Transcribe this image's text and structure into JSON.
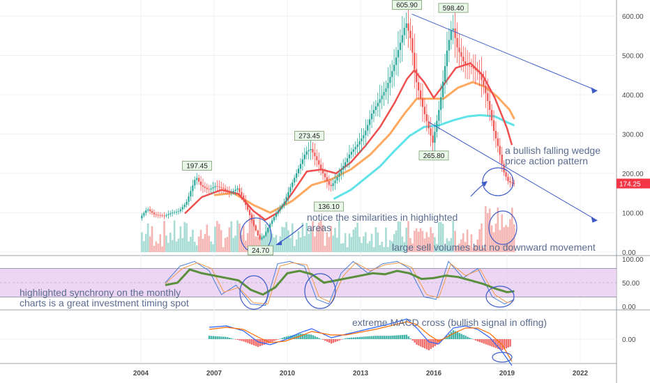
{
  "chart_data": [
    {
      "type": "candlestick",
      "panel": "price",
      "x_ticks": [
        "2004",
        "2007",
        "2010",
        "2013",
        "2016",
        "2019",
        "2022"
      ],
      "y_ticks": [
        "0.00",
        "100.00",
        "200.00",
        "300.00",
        "400.00",
        "500.00",
        "600.00"
      ],
      "ylim": [
        0,
        650
      ],
      "current_price": "174.25",
      "price_color": "#f23645",
      "peak_labels": [
        {
          "text": "197.45",
          "date": 2006.3,
          "value": 197.45,
          "pos": "above"
        },
        {
          "text": "24.70",
          "date": 2008.9,
          "value": 24.7,
          "pos": "below"
        },
        {
          "text": "273.45",
          "date": 2010.9,
          "value": 273.45,
          "pos": "above"
        },
        {
          "text": "136.10",
          "date": 2011.7,
          "value": 136.1,
          "pos": "below"
        },
        {
          "text": "605.90",
          "date": 2014.9,
          "value": 605.9,
          "pos": "above"
        },
        {
          "text": "265.80",
          "date": 2016.0,
          "value": 265.8,
          "pos": "below"
        },
        {
          "text": "598.40",
          "date": 2016.8,
          "value": 598.4,
          "pos": "above"
        }
      ],
      "price_series": [
        [
          2004.0,
          86
        ],
        [
          2004.3,
          110
        ],
        [
          2004.6,
          95
        ],
        [
          2005.0,
          92
        ],
        [
          2005.3,
          100
        ],
        [
          2005.6,
          104
        ],
        [
          2005.9,
          125
        ],
        [
          2006.1,
          158
        ],
        [
          2006.3,
          192
        ],
        [
          2006.5,
          170
        ],
        [
          2006.8,
          158
        ],
        [
          2007.1,
          168
        ],
        [
          2007.4,
          162
        ],
        [
          2007.7,
          150
        ],
        [
          2008.0,
          162
        ],
        [
          2008.2,
          140
        ],
        [
          2008.4,
          110
        ],
        [
          2008.6,
          78
        ],
        [
          2008.9,
          32
        ],
        [
          2009.1,
          42
        ],
        [
          2009.3,
          68
        ],
        [
          2009.6,
          100
        ],
        [
          2009.9,
          125
        ],
        [
          2010.2,
          170
        ],
        [
          2010.5,
          212
        ],
        [
          2010.8,
          255
        ],
        [
          2011.0,
          262
        ],
        [
          2011.2,
          240
        ],
        [
          2011.5,
          200
        ],
        [
          2011.8,
          165
        ],
        [
          2012.0,
          182
        ],
        [
          2012.3,
          215
        ],
        [
          2012.6,
          250
        ],
        [
          2012.9,
          272
        ],
        [
          2013.2,
          300
        ],
        [
          2013.5,
          352
        ],
        [
          2013.8,
          385
        ],
        [
          2014.1,
          418
        ],
        [
          2014.4,
          472
        ],
        [
          2014.7,
          540
        ],
        [
          2014.9,
          585
        ],
        [
          2015.1,
          540
        ],
        [
          2015.3,
          440
        ],
        [
          2015.6,
          365
        ],
        [
          2015.9,
          300
        ],
        [
          2016.0,
          278
        ],
        [
          2016.3,
          378
        ],
        [
          2016.6,
          520
        ],
        [
          2016.8,
          578
        ],
        [
          2017.0,
          520
        ],
        [
          2017.3,
          478
        ],
        [
          2017.6,
          470
        ],
        [
          2017.9,
          455
        ],
        [
          2018.1,
          420
        ],
        [
          2018.3,
          372
        ],
        [
          2018.5,
          308
        ],
        [
          2018.7,
          262
        ],
        [
          2018.9,
          205
        ],
        [
          2019.1,
          178
        ],
        [
          2019.3,
          174
        ]
      ],
      "ema_red": [
        [
          2005.8,
          98
        ],
        [
          2006.5,
          140
        ],
        [
          2007.3,
          158
        ],
        [
          2008.0,
          148
        ],
        [
          2008.6,
          105
        ],
        [
          2009.1,
          82
        ],
        [
          2009.6,
          100
        ],
        [
          2010.2,
          150
        ],
        [
          2010.8,
          205
        ],
        [
          2011.4,
          210
        ],
        [
          2012.0,
          200
        ],
        [
          2012.6,
          228
        ],
        [
          2013.2,
          270
        ],
        [
          2013.8,
          318
        ],
        [
          2014.4,
          380
        ],
        [
          2014.9,
          440
        ],
        [
          2015.2,
          462
        ],
        [
          2015.6,
          432
        ],
        [
          2016.0,
          392
        ],
        [
          2016.4,
          425
        ],
        [
          2016.9,
          468
        ],
        [
          2017.5,
          480
        ],
        [
          2018.0,
          450
        ],
        [
          2018.5,
          392
        ],
        [
          2019.0,
          315
        ],
        [
          2019.2,
          272
        ]
      ],
      "ema_orange": [
        [
          2007.0,
          145
        ],
        [
          2007.8,
          150
        ],
        [
          2008.6,
          120
        ],
        [
          2009.3,
          100
        ],
        [
          2010.2,
          130
        ],
        [
          2011.0,
          170
        ],
        [
          2011.8,
          185
        ],
        [
          2012.6,
          210
        ],
        [
          2013.4,
          248
        ],
        [
          2014.2,
          300
        ],
        [
          2014.8,
          352
        ],
        [
          2015.3,
          390
        ],
        [
          2015.8,
          390
        ],
        [
          2016.4,
          390
        ],
        [
          2017.0,
          418
        ],
        [
          2017.6,
          432
        ],
        [
          2018.1,
          420
        ],
        [
          2018.6,
          395
        ],
        [
          2019.1,
          362
        ],
        [
          2019.3,
          338
        ]
      ],
      "ema_cyan": [
        [
          2011.9,
          135
        ],
        [
          2012.6,
          158
        ],
        [
          2013.2,
          188
        ],
        [
          2013.8,
          218
        ],
        [
          2014.4,
          258
        ],
        [
          2015.0,
          295
        ],
        [
          2015.6,
          318
        ],
        [
          2016.2,
          322
        ],
        [
          2016.8,
          335
        ],
        [
          2017.4,
          345
        ],
        [
          2017.9,
          348
        ],
        [
          2018.5,
          345
        ],
        [
          2019.0,
          330
        ],
        [
          2019.3,
          322
        ]
      ],
      "annotations": [
        {
          "text": "a bullish falling wedge",
          "key": "wedge1"
        },
        {
          "text": "price action pattern",
          "key": "wedge2"
        },
        {
          "text": "notice the similarities in highlighted",
          "key": "sim1"
        },
        {
          "text": "areas",
          "key": "sim2"
        },
        {
          "text": "large sell volumes but no downward movement",
          "key": "vol"
        }
      ]
    },
    {
      "type": "line",
      "panel": "stochastic",
      "y_ticks": [
        "0.00",
        "50.00",
        "100.00"
      ],
      "ylim": [
        0,
        100
      ],
      "band": [
        20,
        80
      ],
      "band_color": "#e6c8ef",
      "series_green": [
        [
          2005.0,
          45
        ],
        [
          2005.5,
          50
        ],
        [
          2006.0,
          78
        ],
        [
          2006.5,
          70
        ],
        [
          2007.0,
          65
        ],
        [
          2007.5,
          60
        ],
        [
          2008.0,
          55
        ],
        [
          2008.5,
          35
        ],
        [
          2009.0,
          25
        ],
        [
          2009.5,
          40
        ],
        [
          2010.0,
          70
        ],
        [
          2010.5,
          75
        ],
        [
          2011.0,
          68
        ],
        [
          2011.5,
          50
        ],
        [
          2012.0,
          55
        ],
        [
          2012.5,
          60
        ],
        [
          2013.0,
          65
        ],
        [
          2013.5,
          70
        ],
        [
          2014.0,
          68
        ],
        [
          2014.5,
          75
        ],
        [
          2015.0,
          70
        ],
        [
          2015.5,
          58
        ],
        [
          2016.0,
          60
        ],
        [
          2016.5,
          65
        ],
        [
          2017.0,
          62
        ],
        [
          2017.5,
          55
        ],
        [
          2018.0,
          48
        ],
        [
          2018.5,
          38
        ],
        [
          2019.0,
          30
        ],
        [
          2019.3,
          32
        ]
      ],
      "series_blue": [
        [
          2005.0,
          50
        ],
        [
          2005.6,
          85
        ],
        [
          2006.2,
          95
        ],
        [
          2006.8,
          75
        ],
        [
          2007.3,
          25
        ],
        [
          2007.9,
          45
        ],
        [
          2008.5,
          5
        ],
        [
          2009.1,
          2
        ],
        [
          2009.6,
          90
        ],
        [
          2010.1,
          95
        ],
        [
          2010.7,
          85
        ],
        [
          2011.2,
          15
        ],
        [
          2011.7,
          5
        ],
        [
          2012.2,
          70
        ],
        [
          2012.7,
          95
        ],
        [
          2013.3,
          70
        ],
        [
          2013.9,
          90
        ],
        [
          2014.5,
          95
        ],
        [
          2015.0,
          80
        ],
        [
          2015.6,
          20
        ],
        [
          2016.1,
          15
        ],
        [
          2016.6,
          95
        ],
        [
          2017.2,
          60
        ],
        [
          2017.8,
          80
        ],
        [
          2018.4,
          20
        ],
        [
          2018.9,
          5
        ],
        [
          2019.3,
          15
        ]
      ],
      "series_orange": [
        [
          2005.0,
          48
        ],
        [
          2005.7,
          80
        ],
        [
          2006.3,
          92
        ],
        [
          2006.9,
          80
        ],
        [
          2007.4,
          30
        ],
        [
          2008.0,
          40
        ],
        [
          2008.6,
          8
        ],
        [
          2009.2,
          5
        ],
        [
          2009.7,
          85
        ],
        [
          2010.2,
          92
        ],
        [
          2010.8,
          88
        ],
        [
          2011.3,
          20
        ],
        [
          2011.8,
          8
        ],
        [
          2012.3,
          65
        ],
        [
          2012.8,
          92
        ],
        [
          2013.4,
          75
        ],
        [
          2014.0,
          88
        ],
        [
          2014.6,
          92
        ],
        [
          2015.1,
          82
        ],
        [
          2015.7,
          25
        ],
        [
          2016.2,
          18
        ],
        [
          2016.7,
          90
        ],
        [
          2017.3,
          65
        ],
        [
          2017.9,
          78
        ],
        [
          2018.5,
          25
        ],
        [
          2019.0,
          8
        ],
        [
          2019.3,
          12
        ]
      ],
      "annotations": [
        {
          "text": "highlighted synchrony on the monthly",
          "key": "syn1"
        },
        {
          "text": "charts is a great investment timing spot",
          "key": "syn2"
        }
      ]
    },
    {
      "type": "histogram",
      "panel": "macd",
      "y_ticks": [
        "0.00"
      ],
      "annotations": [
        {
          "text": "extreme MACD cross (bullish signal in offing)",
          "key": "macd"
        }
      ],
      "macd_line": [
        [
          2006.8,
          17
        ],
        [
          2007.5,
          19
        ],
        [
          2008.2,
          12
        ],
        [
          2008.8,
          -4
        ],
        [
          2009.3,
          -8
        ],
        [
          2009.9,
          -1
        ],
        [
          2010.5,
          9
        ],
        [
          2011.0,
          15
        ],
        [
          2011.8,
          2
        ],
        [
          2012.4,
          7
        ],
        [
          2013.0,
          12
        ],
        [
          2013.6,
          17
        ],
        [
          2014.2,
          22
        ],
        [
          2014.9,
          29
        ],
        [
          2015.3,
          16
        ],
        [
          2015.8,
          -4
        ],
        [
          2016.2,
          -7
        ],
        [
          2016.8,
          16
        ],
        [
          2017.3,
          19
        ],
        [
          2017.8,
          14
        ],
        [
          2018.3,
          2
        ],
        [
          2018.8,
          -18
        ],
        [
          2019.2,
          -38
        ]
      ],
      "signal_line": [
        [
          2006.8,
          14
        ],
        [
          2007.5,
          17
        ],
        [
          2008.2,
          14
        ],
        [
          2008.8,
          3
        ],
        [
          2009.3,
          -5
        ],
        [
          2009.9,
          -3
        ],
        [
          2010.5,
          4
        ],
        [
          2011.0,
          11
        ],
        [
          2011.8,
          6
        ],
        [
          2012.4,
          6
        ],
        [
          2013.0,
          10
        ],
        [
          2013.6,
          14
        ],
        [
          2014.2,
          19
        ],
        [
          2014.9,
          25
        ],
        [
          2015.3,
          21
        ],
        [
          2015.8,
          6
        ],
        [
          2016.2,
          -3
        ],
        [
          2016.8,
          8
        ],
        [
          2017.3,
          16
        ],
        [
          2017.8,
          16
        ],
        [
          2018.3,
          8
        ],
        [
          2018.8,
          -8
        ],
        [
          2019.2,
          -32
        ]
      ]
    }
  ]
}
